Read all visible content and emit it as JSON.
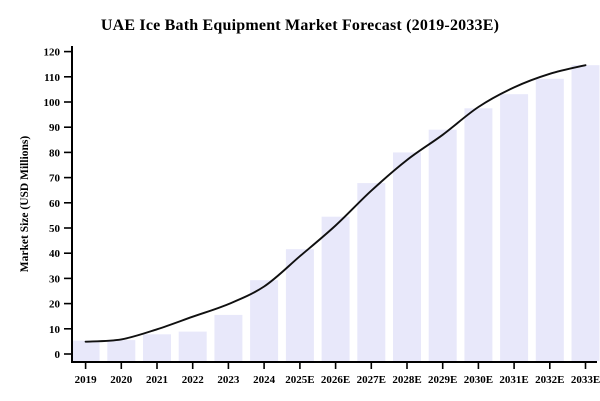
{
  "chart_data": {
    "type": "bar",
    "overlay": "smoothed trend line of same series",
    "title": "UAE Ice Bath Equipment Market Forecast (2019-2033E)",
    "xlabel": "",
    "ylabel": "Market Size (USD Millions)",
    "categories": [
      "2019",
      "2020",
      "2021",
      "2022",
      "2023",
      "2024",
      "2025E",
      "2026E",
      "2027E",
      "2028E",
      "2029E",
      "2030E",
      "2031E",
      "2032E",
      "2033E"
    ],
    "series": [
      {
        "name": "Market Size (USD Millions) - bars",
        "type": "bar",
        "values": [
          5.3,
          5.5,
          7.8,
          8.9,
          15.5,
          29.3,
          41.6,
          54.5,
          67.8,
          80.0,
          89.0,
          97.5,
          103.1,
          109.2,
          114.6
        ]
      },
      {
        "name": "Smoothed trend line",
        "type": "line",
        "values": [
          4.9,
          5.8,
          9.8,
          14.8,
          19.8,
          26.8,
          38.8,
          51.0,
          64.8,
          77.0,
          87.0,
          98.0,
          105.8,
          111.2,
          114.6
        ]
      }
    ],
    "ylim": [
      0,
      120
    ],
    "yticks": [
      0,
      10,
      20,
      30,
      40,
      50,
      60,
      70,
      80,
      90,
      100,
      110,
      120
    ],
    "grid": false,
    "legend": "none",
    "colors": {
      "bar_fill": "#E8E8FA",
      "line": "#101010",
      "axis": "#000000",
      "background": "#FFFFFF"
    }
  }
}
